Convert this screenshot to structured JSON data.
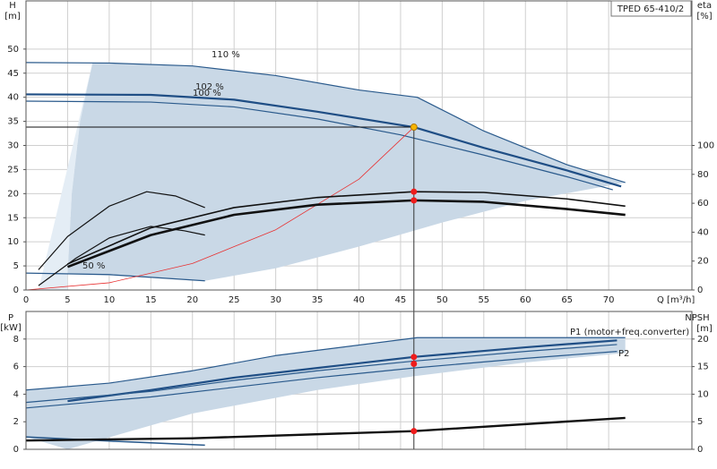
{
  "chart_data": [
    {
      "type": "line",
      "title": "TPED 65-410/2",
      "y_label": "H",
      "y_unit": "[m]",
      "y2_label": "eta",
      "y2_unit": "[%]",
      "x_label": "Q [m³/h]",
      "xlim": [
        0,
        80
      ],
      "xticks": [
        0,
        5,
        10,
        15,
        20,
        25,
        30,
        35,
        40,
        45,
        50,
        55,
        60,
        65,
        70
      ],
      "ylim": [
        0,
        60
      ],
      "yticks": [
        0,
        5,
        10,
        15,
        20,
        25,
        30,
        35,
        40,
        45,
        50
      ],
      "y2lim": [
        0,
        200
      ],
      "y2ticks": [
        0,
        20,
        40,
        60,
        80,
        100
      ],
      "grid": true,
      "annotations": [
        "110 %",
        "102 %",
        "100 %",
        "50 %"
      ],
      "series": [
        {
          "fill": "#e4edf5",
          "x": [
            1.5,
            5,
            5,
            5.5,
            6.5,
            8
          ],
          "values": [
            0,
            0,
            3.3,
            20,
            35,
            47.2
          ]
        },
        {
          "fill": "#c9d8e6",
          "x": [
            8,
            10,
            20,
            30,
            40,
            47,
            55,
            65,
            72,
            60,
            50,
            40,
            30,
            21.5,
            10,
            5,
            5.5,
            6.5
          ],
          "values": [
            47.2,
            47.1,
            46.5,
            44.5,
            41.5,
            40,
            33,
            26,
            22.3,
            18.5,
            14,
            9,
            4.5,
            1.9,
            3,
            3.3,
            20,
            35
          ]
        },
        {
          "color": "#2a5a8c",
          "width": 1.2,
          "x": [
            0,
            10,
            20,
            30,
            40,
            47,
            55,
            65,
            72
          ],
          "values": [
            47.2,
            47.1,
            46.5,
            44.5,
            41.5,
            40,
            33,
            26,
            22.3
          ]
        },
        {
          "color": "#1f4e85",
          "width": 2.2,
          "x": [
            0,
            15,
            25,
            35,
            46.6,
            55,
            65,
            71.5
          ],
          "values": [
            40.6,
            40.5,
            39.5,
            37,
            33.8,
            29.5,
            24.8,
            21.5
          ]
        },
        {
          "color": "#2a5a8c",
          "width": 1.2,
          "x": [
            0,
            15,
            25,
            35,
            45,
            55,
            65,
            70.5
          ],
          "values": [
            39.2,
            39,
            38,
            35.5,
            32.2,
            28,
            23.5,
            20.8
          ]
        },
        {
          "color": "#2a5a8c",
          "width": 1.2,
          "x": [
            0,
            10,
            21.5
          ],
          "values": [
            3.5,
            3.2,
            1.9
          ]
        },
        {
          "color": "#e83030",
          "width": 0.8,
          "x": [
            0,
            10,
            20,
            30,
            40,
            46.6
          ],
          "values": [
            0,
            1.5,
            5.5,
            12.5,
            23,
            33.8
          ]
        },
        {
          "color": "#111111",
          "width": 1.2,
          "axis": "y2",
          "x": [
            1.5,
            5,
            10,
            14.5,
            18,
            21.5
          ],
          "values": [
            14,
            37,
            58,
            68,
            65,
            57
          ]
        },
        {
          "color": "#111111",
          "width": 1.2,
          "axis": "y2",
          "x": [
            1.5,
            6,
            10,
            15,
            19,
            21.5
          ],
          "values": [
            3,
            22,
            36,
            44,
            41,
            38
          ]
        },
        {
          "color": "#111111",
          "width": 1.6,
          "axis": "y2",
          "x": [
            5,
            15,
            25,
            35,
            46.6,
            55,
            65,
            72
          ],
          "values": [
            18,
            43,
            57,
            64,
            68,
            67.5,
            63,
            58
          ]
        },
        {
          "color": "#111111",
          "width": 2.6,
          "axis": "y2",
          "x": [
            5,
            15,
            25,
            35,
            46.6,
            55,
            65,
            72
          ],
          "values": [
            16,
            38,
            52,
            59,
            62,
            61,
            56,
            52
          ]
        }
      ],
      "points": [
        {
          "color": "#f7b500",
          "x": 46.6,
          "y": 33.8
        },
        {
          "color": "#ee1c1c",
          "axis": "y2",
          "x": 46.6,
          "y": 68
        },
        {
          "color": "#ee1c1c",
          "axis": "y2",
          "x": 46.6,
          "y": 62
        }
      ]
    },
    {
      "type": "line",
      "y_label": "P",
      "y_unit": "[kW]",
      "y2_label": "NPSH",
      "y2_unit": "[m]",
      "xlim": [
        0,
        80
      ],
      "ylim": [
        0,
        10
      ],
      "yticks": [
        0,
        2,
        4,
        6,
        8
      ],
      "y2lim": [
        0,
        25
      ],
      "y2ticks": [
        0,
        5,
        10,
        15,
        20
      ],
      "grid": true,
      "annotations": [
        "P1 (motor+freq.converter)",
        "P2"
      ],
      "series": [
        {
          "fill": "#c9d8e6",
          "x": [
            0,
            10,
            20,
            30,
            47,
            72,
            72,
            60,
            46.6,
            35,
            20,
            5,
            0
          ],
          "values": [
            4.3,
            4.8,
            5.7,
            6.8,
            8.1,
            8.1,
            7,
            6.3,
            5.3,
            4.3,
            2.6,
            0,
            0.9
          ]
        },
        {
          "color": "#2a5a8c",
          "width": 1.2,
          "x": [
            0,
            10,
            20,
            30,
            47,
            72
          ],
          "values": [
            4.3,
            4.8,
            5.7,
            6.8,
            8.1,
            8.1
          ]
        },
        {
          "color": "#1f4e85",
          "width": 2.2,
          "x": [
            5,
            15,
            25,
            35,
            46.6,
            60,
            71
          ],
          "values": [
            3.5,
            4.3,
            5.2,
            5.9,
            6.7,
            7.4,
            7.9
          ]
        },
        {
          "color": "#2a5a8c",
          "width": 1.2,
          "x": [
            0,
            15,
            25,
            35,
            46.6,
            60,
            71
          ],
          "values": [
            3.4,
            4.2,
            5,
            5.7,
            6.4,
            7.1,
            7.6
          ]
        },
        {
          "color": "#2a5a8c",
          "width": 1.2,
          "x": [
            0,
            15,
            25,
            35,
            46.6,
            60,
            71
          ],
          "values": [
            3,
            3.8,
            4.5,
            5.2,
            5.9,
            6.6,
            7.1
          ]
        },
        {
          "color": "#2a5a8c",
          "width": 1.6,
          "x": [
            0,
            10,
            21.5
          ],
          "values": [
            0.9,
            0.6,
            0.3
          ]
        },
        {
          "color": "#111111",
          "width": 2.4,
          "axis": "y2",
          "x": [
            0,
            20,
            46.6,
            72
          ],
          "values": [
            1.6,
            2,
            3.3,
            5.7
          ]
        }
      ],
      "points": [
        {
          "color": "#ee1c1c",
          "x": 46.6,
          "y": 6.7
        },
        {
          "color": "#ee1c1c",
          "x": 46.6,
          "y": 6.2
        },
        {
          "color": "#ee1c1c",
          "axis": "y2",
          "x": 46.6,
          "y": 3.3
        }
      ]
    }
  ]
}
